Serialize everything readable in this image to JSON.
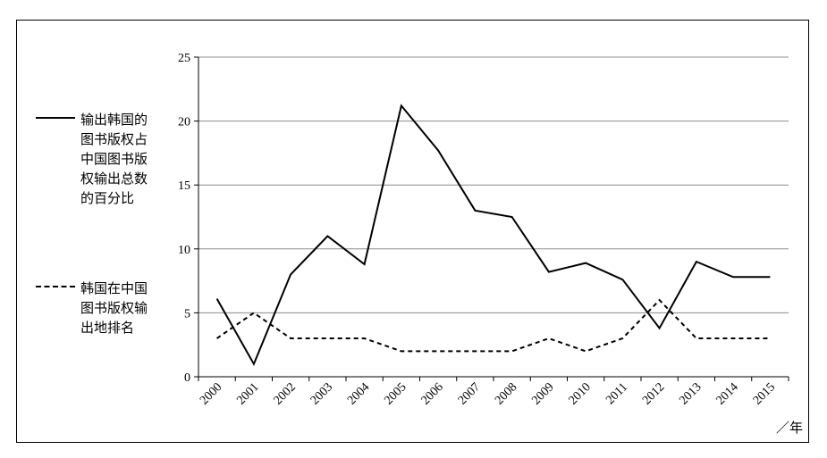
{
  "chart_data": {
    "type": "line",
    "x": [
      "2000",
      "2001",
      "2002",
      "2003",
      "2004",
      "2005",
      "2006",
      "2007",
      "2008",
      "2009",
      "2010",
      "2011",
      "2012",
      "2013",
      "2014",
      "2015"
    ],
    "ylim": [
      0,
      25
    ],
    "yticks": [
      0,
      5,
      10,
      15,
      20,
      25
    ],
    "grid": true,
    "legend_position": "left",
    "xunit": "／年",
    "series": [
      {
        "name": "输出韩国的图书版权占中国图书版权输出总数的百分比",
        "style": "solid",
        "values": [
          6.1,
          1.0,
          8.0,
          11.0,
          8.8,
          21.2,
          17.7,
          13.0,
          12.5,
          8.2,
          8.9,
          7.6,
          3.8,
          9.0,
          7.8,
          7.8
        ]
      },
      {
        "name": "韩国在中国图书版权输出地排名",
        "style": "dashed",
        "values": [
          3,
          5,
          3,
          3,
          3,
          2,
          2,
          2,
          2,
          3,
          2,
          3,
          6,
          3,
          3,
          3
        ]
      }
    ]
  },
  "legend": {
    "entries": [
      {
        "label": "输出韩国的\n图书版权占\n中国图书版\n权输出总数\n的百分比",
        "style": "solid"
      },
      {
        "label": "韩国在中国\n图书版权输\n出地排名",
        "style": "dashed"
      }
    ]
  }
}
